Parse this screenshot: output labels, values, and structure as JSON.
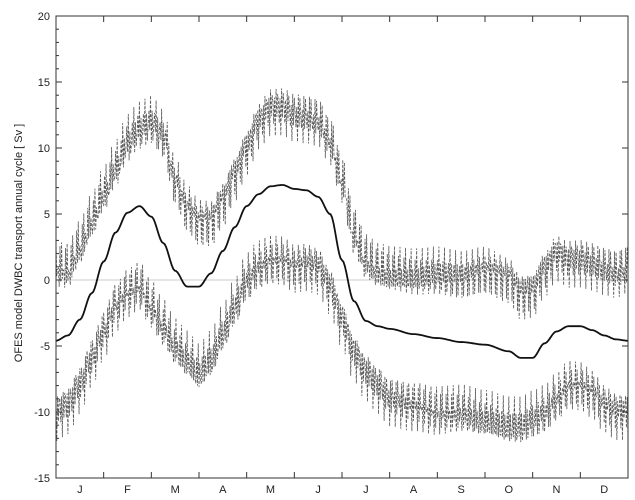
{
  "chart_data": {
    "type": "line",
    "title": "",
    "xlabel": "",
    "ylabel": "OFES model DWBC transport annual cycle [ Sv ]",
    "xlim": [
      0,
      12
    ],
    "ylim": [
      -15,
      20
    ],
    "yticks": [
      -15,
      -10,
      -5,
      0,
      5,
      10,
      15,
      20
    ],
    "ytick_labels": [
      "-15",
      "-10",
      "-5",
      "0",
      "5",
      "10",
      "15",
      "20"
    ],
    "month_labels": [
      "J",
      "F",
      "M",
      "A",
      "M",
      "J",
      "J",
      "A",
      "S",
      "O",
      "N",
      "D"
    ],
    "zero_line": true,
    "grid": false,
    "legend": "none",
    "colors": {
      "mean": "#111111",
      "bounds": "#555555",
      "zero": "#bbbbbb",
      "axis": "#333333"
    },
    "series": [
      {
        "style": "solid",
        "x": [
          0,
          0.25,
          0.5,
          0.75,
          1.0,
          1.25,
          1.5,
          1.75,
          2.0,
          2.25,
          2.5,
          2.75,
          3.0,
          3.25,
          3.5,
          3.75,
          4.0,
          4.25,
          4.5,
          4.75,
          5.0,
          5.25,
          5.5,
          5.75,
          6.0,
          6.25,
          6.5,
          6.75,
          7.0,
          7.5,
          8.0,
          8.5,
          9.0,
          9.5,
          9.75,
          10.0,
          10.25,
          10.5,
          10.75,
          11.0,
          11.25,
          11.5,
          11.75,
          12.0
        ],
        "y": [
          -4.6,
          -4.2,
          -3.0,
          -1.0,
          1.4,
          3.6,
          5.1,
          5.6,
          4.8,
          2.8,
          0.7,
          -0.5,
          -0.5,
          0.5,
          2.2,
          4.0,
          5.6,
          6.5,
          7.1,
          7.2,
          6.9,
          6.8,
          6.3,
          5.0,
          1.5,
          -1.6,
          -3.1,
          -3.5,
          -3.7,
          -4.1,
          -4.4,
          -4.7,
          -4.9,
          -5.4,
          -5.9,
          -5.9,
          -4.8,
          -3.9,
          -3.5,
          -3.5,
          -3.8,
          -4.2,
          -4.5,
          -4.6
        ]
      },
      {
        "style": "dashed",
        "x": [
          0,
          0.25,
          0.5,
          0.75,
          1.0,
          1.25,
          1.5,
          1.75,
          2.0,
          2.25,
          2.5,
          2.75,
          3.0,
          3.25,
          3.5,
          3.75,
          4.0,
          4.25,
          4.5,
          4.75,
          5.0,
          5.25,
          5.5,
          5.75,
          6.0,
          6.25,
          6.5,
          6.75,
          7.0,
          7.5,
          8.0,
          8.5,
          9.0,
          9.5,
          9.75,
          10.0,
          10.25,
          10.5,
          10.75,
          11.0,
          11.25,
          11.5,
          11.75,
          12.0
        ],
        "y": [
          1.0,
          0.8,
          2.5,
          4.5,
          6.5,
          8.5,
          10.5,
          11.5,
          12.0,
          11.0,
          7.5,
          5.5,
          4.5,
          4.5,
          6.0,
          8.0,
          10.0,
          12.0,
          13.0,
          13.0,
          12.5,
          12.3,
          12.0,
          10.5,
          7.5,
          3.5,
          1.5,
          0.8,
          0.5,
          0.3,
          0.5,
          0.3,
          0.8,
          0.2,
          -1.0,
          -0.8,
          0.8,
          2.0,
          1.5,
          1.5,
          1.2,
          0.8,
          0.5,
          0.8
        ]
      },
      {
        "style": "dashed",
        "x": [
          0,
          0.25,
          0.5,
          0.75,
          1.0,
          1.25,
          1.5,
          1.75,
          2.0,
          2.25,
          2.5,
          2.75,
          3.0,
          3.25,
          3.5,
          3.75,
          4.0,
          4.25,
          4.5,
          4.75,
          5.0,
          5.25,
          5.5,
          5.75,
          6.0,
          6.25,
          6.5,
          6.75,
          7.0,
          7.5,
          8.0,
          8.5,
          9.0,
          9.5,
          9.75,
          10.0,
          10.25,
          10.5,
          10.75,
          11.0,
          11.25,
          11.5,
          11.75,
          12.0
        ],
        "y": [
          -10.0,
          -9.5,
          -8.0,
          -6.0,
          -4.0,
          -2.0,
          -1.0,
          -0.5,
          -2.0,
          -3.5,
          -5.0,
          -6.0,
          -7.0,
          -6.0,
          -4.0,
          -2.0,
          0.0,
          1.0,
          1.5,
          1.5,
          1.0,
          1.2,
          1.0,
          -0.5,
          -3.0,
          -5.5,
          -7.0,
          -8.0,
          -9.0,
          -9.5,
          -10.0,
          -10.0,
          -10.5,
          -11.0,
          -11.0,
          -10.5,
          -10.0,
          -9.0,
          -8.0,
          -8.0,
          -8.5,
          -9.5,
          -10.0,
          -10.0
        ]
      }
    ]
  }
}
